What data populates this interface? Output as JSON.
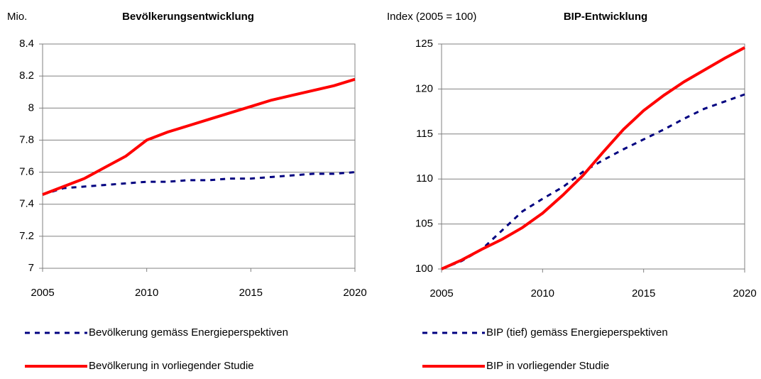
{
  "chart_data": [
    {
      "type": "line",
      "title": "Bevölkerungsentwicklung",
      "y_label": "Mio.",
      "x": [
        2005,
        2006,
        2007,
        2008,
        2009,
        2010,
        2011,
        2012,
        2013,
        2014,
        2015,
        2016,
        2017,
        2018,
        2019,
        2020
      ],
      "xlim": [
        2005,
        2020
      ],
      "xticks": [
        2005,
        2010,
        2015,
        2020
      ],
      "ylim": [
        7,
        8.4
      ],
      "yticks": [
        7,
        7.2,
        7.4,
        7.6,
        7.8,
        8,
        8.2,
        8.4
      ],
      "grid": true,
      "series": [
        {
          "name": "Bevölkerung gemäss Energieperspektiven",
          "color": "#000080",
          "dashed": true,
          "values": [
            7.46,
            7.5,
            7.51,
            7.52,
            7.53,
            7.54,
            7.54,
            7.55,
            7.55,
            7.56,
            7.56,
            7.57,
            7.58,
            7.59,
            7.59,
            7.6
          ]
        },
        {
          "name": "Bevölkerung in vorliegender Studie",
          "color": "#ff0000",
          "dashed": false,
          "values": [
            7.46,
            7.51,
            7.56,
            7.63,
            7.7,
            7.8,
            7.85,
            7.89,
            7.93,
            7.97,
            8.01,
            8.05,
            8.08,
            8.11,
            8.14,
            8.18
          ]
        }
      ]
    },
    {
      "type": "line",
      "title": "BIP-Entwicklung",
      "y_label": "Index (2005 = 100)",
      "x": [
        2005,
        2006,
        2007,
        2008,
        2009,
        2010,
        2011,
        2012,
        2013,
        2014,
        2015,
        2016,
        2017,
        2018,
        2019,
        2020
      ],
      "xlim": [
        2005,
        2020
      ],
      "xticks": [
        2005,
        2010,
        2015,
        2020
      ],
      "ylim": [
        100,
        125
      ],
      "yticks": [
        100,
        105,
        110,
        115,
        120,
        125
      ],
      "grid": true,
      "series": [
        {
          "name": "BIP (tief) gemäss Energieperspektiven",
          "color": "#000080",
          "dashed": true,
          "values": [
            100,
            100.9,
            102.2,
            104.3,
            106.4,
            107.8,
            109.1,
            110.8,
            112.1,
            113.3,
            114.4,
            115.5,
            116.7,
            117.8,
            118.6,
            119.4
          ]
        },
        {
          "name": "BIP in vorliegender Studie",
          "color": "#ff0000",
          "dashed": false,
          "values": [
            100,
            101,
            102.2,
            103.3,
            104.6,
            106.2,
            108.2,
            110.4,
            113.0,
            115.5,
            117.6,
            119.3,
            120.8,
            122.1,
            123.4,
            124.6
          ]
        }
      ]
    }
  ]
}
